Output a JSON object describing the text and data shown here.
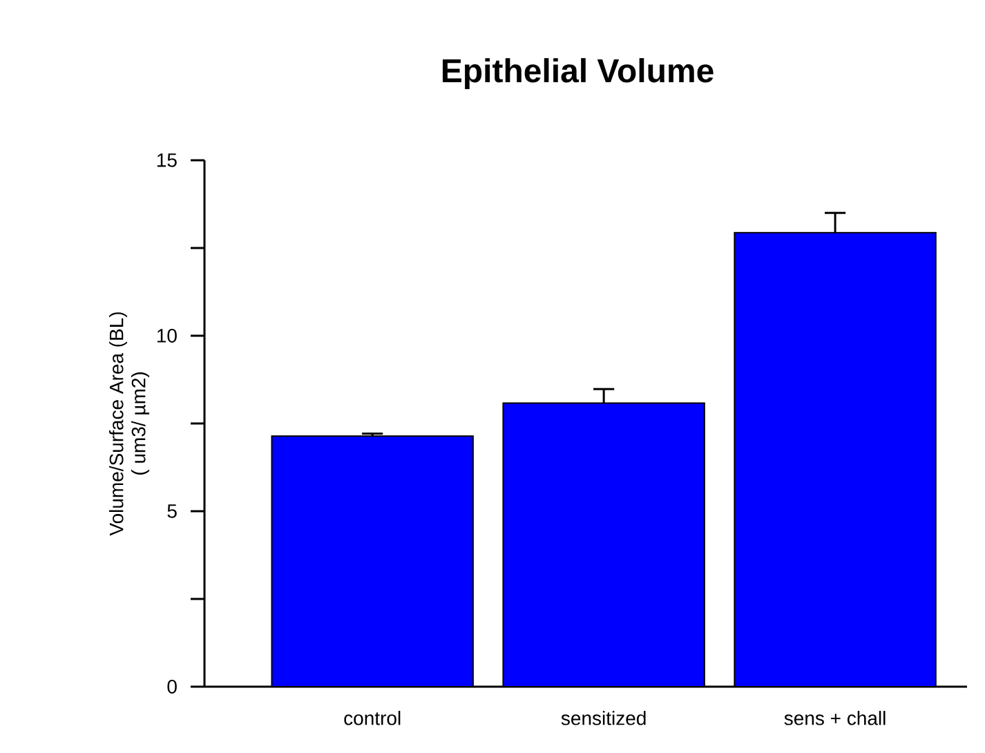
{
  "chart_data": {
    "type": "bar",
    "title": "Epithelial Volume",
    "ylabel": "Volume/Surface Area (BL)\n( um3/    µm2)",
    "categories": [
      "control",
      "sensitized",
      "sens + chall"
    ],
    "values": [
      7.14,
      8.08,
      12.94
    ],
    "errors": [
      [
        7.14,
        7.21
      ],
      [
        8.08,
        8.48
      ],
      [
        12.94,
        13.5
      ]
    ],
    "color": "#0000ff",
    "ylim": [
      0,
      15
    ],
    "yticks": [
      0,
      {
        "value": 2.5,
        "label": null
      },
      5,
      {
        "value": 7.5,
        "label": null
      },
      10,
      {
        "value": 12.5,
        "label": null
      },
      15
    ],
    "grid": false
  }
}
